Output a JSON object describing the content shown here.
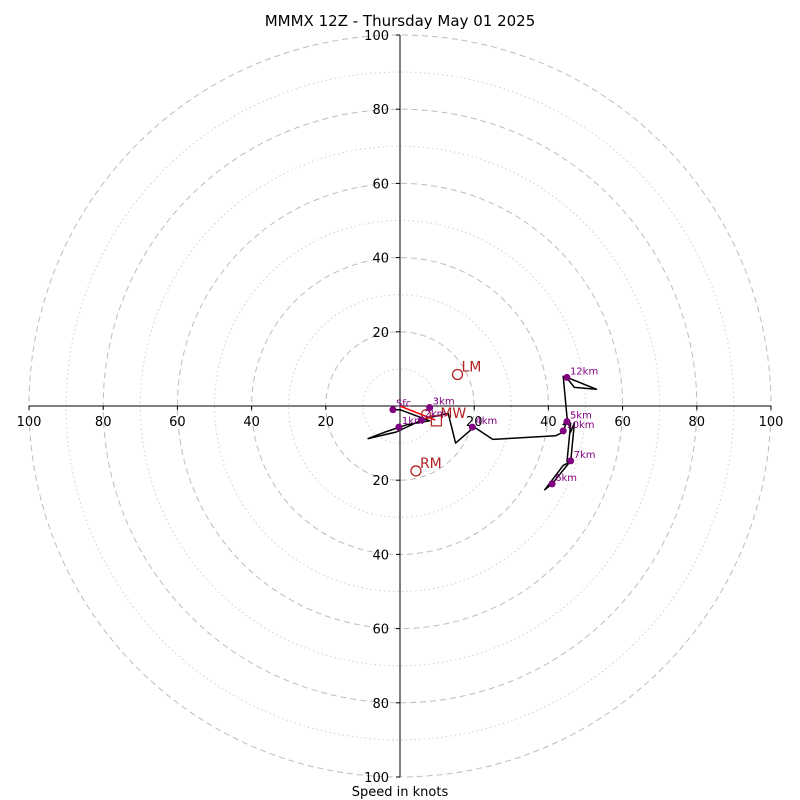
{
  "chart_data": {
    "type": "scatter",
    "title": "MMMX 12Z - Thursday May 01 2025",
    "xlabel": "Speed in knots",
    "axis_range": [
      -100,
      100
    ],
    "ring_major": [
      20,
      40,
      60,
      80,
      100
    ],
    "ring_minor": [
      10,
      30,
      50,
      70,
      90
    ],
    "x_ticks": [
      {
        "value": -100,
        "label": "100"
      },
      {
        "value": -80,
        "label": "80"
      },
      {
        "value": -60,
        "label": "60"
      },
      {
        "value": -40,
        "label": "40"
      },
      {
        "value": -20,
        "label": "20"
      },
      {
        "value": 20,
        "label": "20"
      },
      {
        "value": 40,
        "label": "40"
      },
      {
        "value": 60,
        "label": "60"
      },
      {
        "value": 80,
        "label": "80"
      },
      {
        "value": 100,
        "label": "100"
      }
    ],
    "y_ticks": [
      {
        "value": 100,
        "label": "100"
      },
      {
        "value": 80,
        "label": "80"
      },
      {
        "value": 60,
        "label": "60"
      },
      {
        "value": 40,
        "label": "40"
      },
      {
        "value": 20,
        "label": "20"
      },
      {
        "value": -20,
        "label": "20"
      },
      {
        "value": -40,
        "label": "40"
      },
      {
        "value": -60,
        "label": "60"
      },
      {
        "value": -80,
        "label": "80"
      },
      {
        "value": -100,
        "label": "100"
      }
    ],
    "hodograph": {
      "x": [
        -1.9,
        0,
        8,
        2,
        -4,
        -8.6,
        -1,
        6.7,
        13,
        15,
        20,
        25,
        42,
        44,
        45,
        44,
        46,
        45,
        46,
        41,
        39,
        44,
        46,
        47,
        46,
        45,
        44,
        45,
        47,
        53,
        45
      ],
      "y": [
        -1,
        -1,
        -4,
        -5,
        -7,
        -8.8,
        -7,
        -3.4,
        -2,
        -10,
        -5.7,
        -9,
        -8,
        -7,
        -4,
        -5,
        -4.6,
        -15,
        -14.8,
        -21,
        -22.6,
        -16,
        -15,
        -4.5,
        -7,
        -3,
        8,
        7.5,
        5,
        4.5,
        7.7
      ]
    },
    "height_markers": [
      {
        "label": "Sfc",
        "x": -1.9,
        "y": -1
      },
      {
        "label": "1km",
        "x": -0.3,
        "y": -5.7
      },
      {
        "label": "2km",
        "x": 5.8,
        "y": -3.8
      },
      {
        "label": "3km",
        "x": 8,
        "y": -0.4
      },
      {
        "label": "4km",
        "x": 19.5,
        "y": -5.7
      },
      {
        "label": "5km",
        "x": 45,
        "y": -4.2
      },
      {
        "label": "6km",
        "x": 41,
        "y": -21
      },
      {
        "label": "7km",
        "x": 46,
        "y": -14.8
      },
      {
        "label": "10km",
        "x": 44,
        "y": -6.7
      },
      {
        "label": "12km",
        "x": 45,
        "y": 7.7
      }
    ],
    "storm_motion": {
      "color": "#b22222",
      "line": {
        "x": [
          0,
          9.5
        ],
        "y": [
          0,
          -3.8
        ]
      },
      "points": [
        {
          "label": "LM",
          "x": 15.5,
          "y": 8.5,
          "marker": "circle"
        },
        {
          "label": "RM",
          "x": 4.3,
          "y": -17.5,
          "marker": "circle"
        },
        {
          "label": "MW",
          "x": 9.8,
          "y": -4,
          "marker": "square"
        },
        {
          "label": "",
          "x": 7,
          "y": -2.2,
          "marker": "circle-small"
        }
      ]
    },
    "colors": {
      "hodograph": "#000000",
      "marker": "#800080",
      "grid": "#bdbdbd",
      "axis": "#000000"
    },
    "grid": true
  }
}
